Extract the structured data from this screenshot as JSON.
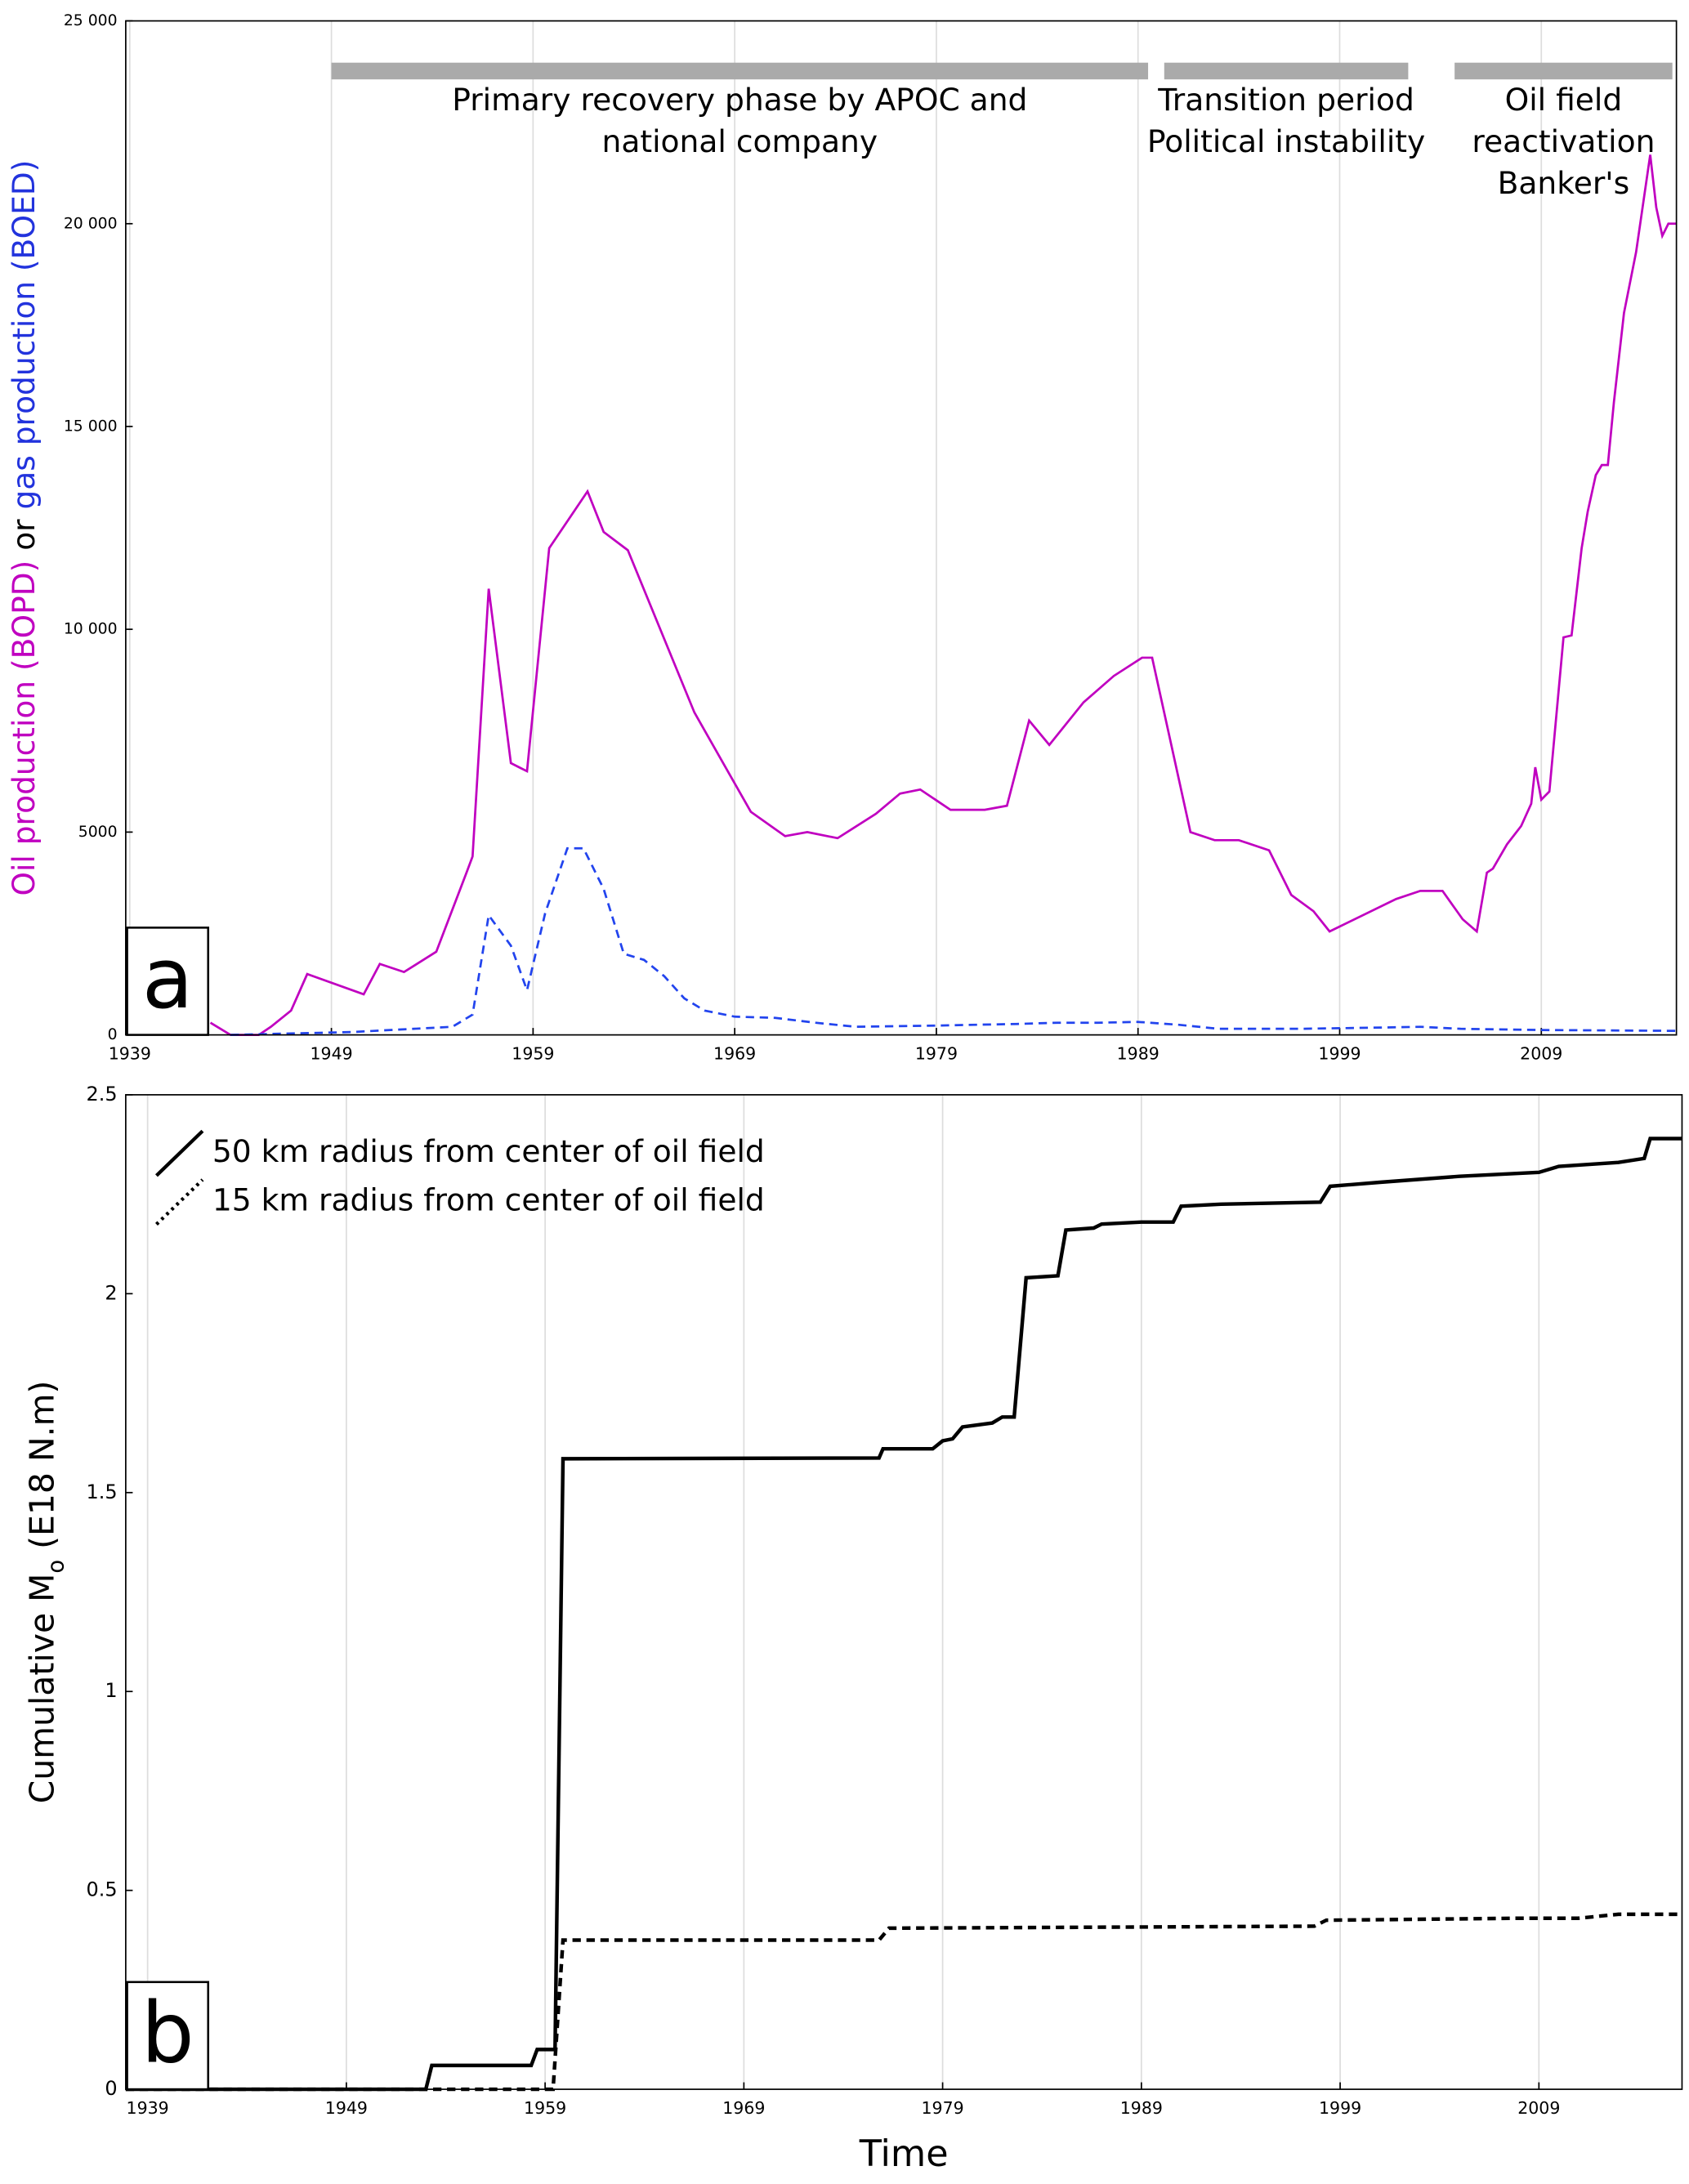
{
  "chart_data": [
    {
      "type": "line",
      "panel_label": "a",
      "ylabel_parts": [
        {
          "text": "Oil production (BOPD)",
          "color": "#c000c0"
        },
        {
          "text": " or ",
          "color": "#000000"
        },
        {
          "text": "gas production (BOED)",
          "color": "#2233dd"
        }
      ],
      "xlim": [
        1938.8,
        2015.7
      ],
      "xticks": [
        1939,
        1949,
        1959,
        1969,
        1979,
        1989,
        1999,
        2009
      ],
      "ylim": [
        0,
        25000
      ],
      "yticks": [
        0,
        5000,
        {
          "value": 10000,
          "label": "10 000"
        },
        {
          "value": 15000,
          "label": "15 000"
        },
        {
          "value": 20000,
          "label": "20 000"
        },
        {
          "value": 25000,
          "label": "25 000"
        }
      ],
      "grid": "x",
      "periods": [
        {
          "start": 1949,
          "end": 1989.5,
          "label": [
            "Primary recovery phase by APOC and",
            "national company"
          ]
        },
        {
          "start": 1990.3,
          "end": 2002.4,
          "label": [
            "Transition period",
            "Political instability"
          ]
        },
        {
          "start": 2004.7,
          "end": 2015.5,
          "label": [
            "Oil field",
            "reactivation",
            "Banker's"
          ]
        }
      ],
      "period_color": "#aaaaaa",
      "series": [
        {
          "color": "#c000c0",
          "linestyle": "solid",
          "x": [
            1943,
            1944,
            1945.4,
            1946,
            1947,
            1947.8,
            1950.6,
            1951.4,
            1952.6,
            1954.2,
            1955.7,
            1956,
            1956.8,
            1957.9,
            1958.7,
            1959.8,
            1961.7,
            1962.5,
            1963.7,
            1967,
            1969.8,
            1971.5,
            1972.6,
            1974.1,
            1976,
            1977.2,
            1978.2,
            1979.7,
            1981.4,
            1982.5,
            1983.6,
            1984.6,
            1986.3,
            1987.8,
            1989.2,
            1989.7,
            1991.6,
            1992.8,
            1994,
            1995.5,
            1996.6,
            1997.7,
            1998.5,
            2001.8,
            2003,
            2004.1,
            2005.1,
            2005.8,
            2006.3,
            2006.6,
            2007.3,
            2008,
            2008.5,
            2008.7,
            2009,
            2009.4,
            2010.1,
            2010.5,
            2011,
            2011.3,
            2011.7,
            2012,
            2012.3,
            2012.6,
            2013.1,
            2013.7,
            2014.4,
            2014.7,
            2015,
            2015.3,
            2015.7
          ],
          "values": [
            300,
            0,
            0,
            200,
            600,
            1500,
            1000,
            1750,
            1550,
            2050,
            4000,
            4400,
            11000,
            6700,
            6500,
            12000,
            13400,
            12400,
            11950,
            7950,
            5500,
            4900,
            5000,
            4850,
            5450,
            5950,
            6050,
            5550,
            5550,
            5650,
            7750,
            7150,
            8200,
            8850,
            9300,
            9300,
            5000,
            4800,
            4800,
            4550,
            3450,
            3050,
            2550,
            3350,
            3550,
            3550,
            2850,
            2550,
            4000,
            4100,
            4700,
            5150,
            5700,
            6600,
            5800,
            6000,
            9800,
            9850,
            12000,
            12900,
            13800,
            14050,
            14050,
            15600,
            17800,
            19300,
            21700,
            20400,
            19700,
            20000,
            20000
          ]
        },
        {
          "color": "#2244ee",
          "linestyle": "dashed",
          "x": [
            1944,
            1950,
            1955,
            1956,
            1956.8,
            1957.9,
            1958.7,
            1959.6,
            1960.7,
            1961.5,
            1962.5,
            1963.5,
            1964.5,
            1965.5,
            1966.5,
            1967.5,
            1969,
            1971,
            1973,
            1975,
            1979,
            1983,
            1985,
            1987,
            1989,
            1991,
            1993,
            1997,
            2001,
            2003,
            2005,
            2009,
            2015.7
          ],
          "values": [
            0,
            70,
            200,
            500,
            2950,
            2200,
            1100,
            3000,
            4600,
            4600,
            3600,
            2000,
            1850,
            1450,
            900,
            600,
            450,
            420,
            300,
            200,
            230,
            270,
            300,
            300,
            320,
            250,
            150,
            150,
            180,
            200,
            150,
            120,
            100
          ]
        }
      ]
    },
    {
      "type": "line",
      "panel_label": "b",
      "xlabel": "Time",
      "ylabel_parts": [
        {
          "text": "Cumulative M"
        },
        {
          "text": "o",
          "sub": true
        },
        {
          "text": " (E18 N.m)"
        }
      ],
      "xlim": [
        1937.9,
        2016.2
      ],
      "xticks": [
        1939,
        1949,
        1959,
        1969,
        1979,
        1989,
        1999,
        2009
      ],
      "ylim": [
        0,
        2.5
      ],
      "yticks": [
        0,
        0.5,
        1,
        1.5,
        2,
        2.5
      ],
      "grid": "x",
      "legend": "upper left",
      "series": [
        {
          "name": "50 km radius from center of oil field",
          "color": "#000000",
          "linestyle": "solid",
          "x": [
            1937.9,
            1953.0,
            1953.3,
            1958.3,
            1958.6,
            1959.5,
            1959.9,
            1975.8,
            1976.0,
            1978.5,
            1979.0,
            1979.5,
            1980.0,
            1981.5,
            1982.0,
            1982.6,
            1983.2,
            1984.8,
            1985.2,
            1986.6,
            1987.0,
            1989.0,
            1990.6,
            1991.0,
            1993.0,
            1998.0,
            1998.5,
            2001.0,
            2005.0,
            2009.0,
            2010.0,
            2013.0,
            2014.3,
            2014.6,
            2016.2
          ],
          "values": [
            0,
            0,
            0.06,
            0.06,
            0.1,
            0.1,
            1.585,
            1.587,
            1.61,
            1.61,
            1.63,
            1.635,
            1.665,
            1.675,
            1.69,
            1.69,
            2.04,
            2.045,
            2.16,
            2.165,
            2.175,
            2.18,
            2.18,
            2.22,
            2.225,
            2.23,
            2.27,
            2.28,
            2.295,
            2.305,
            2.32,
            2.33,
            2.34,
            2.39,
            2.39
          ]
        },
        {
          "name": "15 km radius from center of oil field",
          "color": "#000000",
          "linestyle": "dashed",
          "x": [
            1937.9,
            1959.4,
            1959.9,
            1975.8,
            1976.3,
            1997.7,
            1998.3,
            2008,
            2011,
            2013,
            2016.2
          ],
          "values": [
            0,
            0,
            0.375,
            0.375,
            0.405,
            0.41,
            0.425,
            0.43,
            0.43,
            0.44,
            0.44
          ]
        }
      ]
    }
  ]
}
